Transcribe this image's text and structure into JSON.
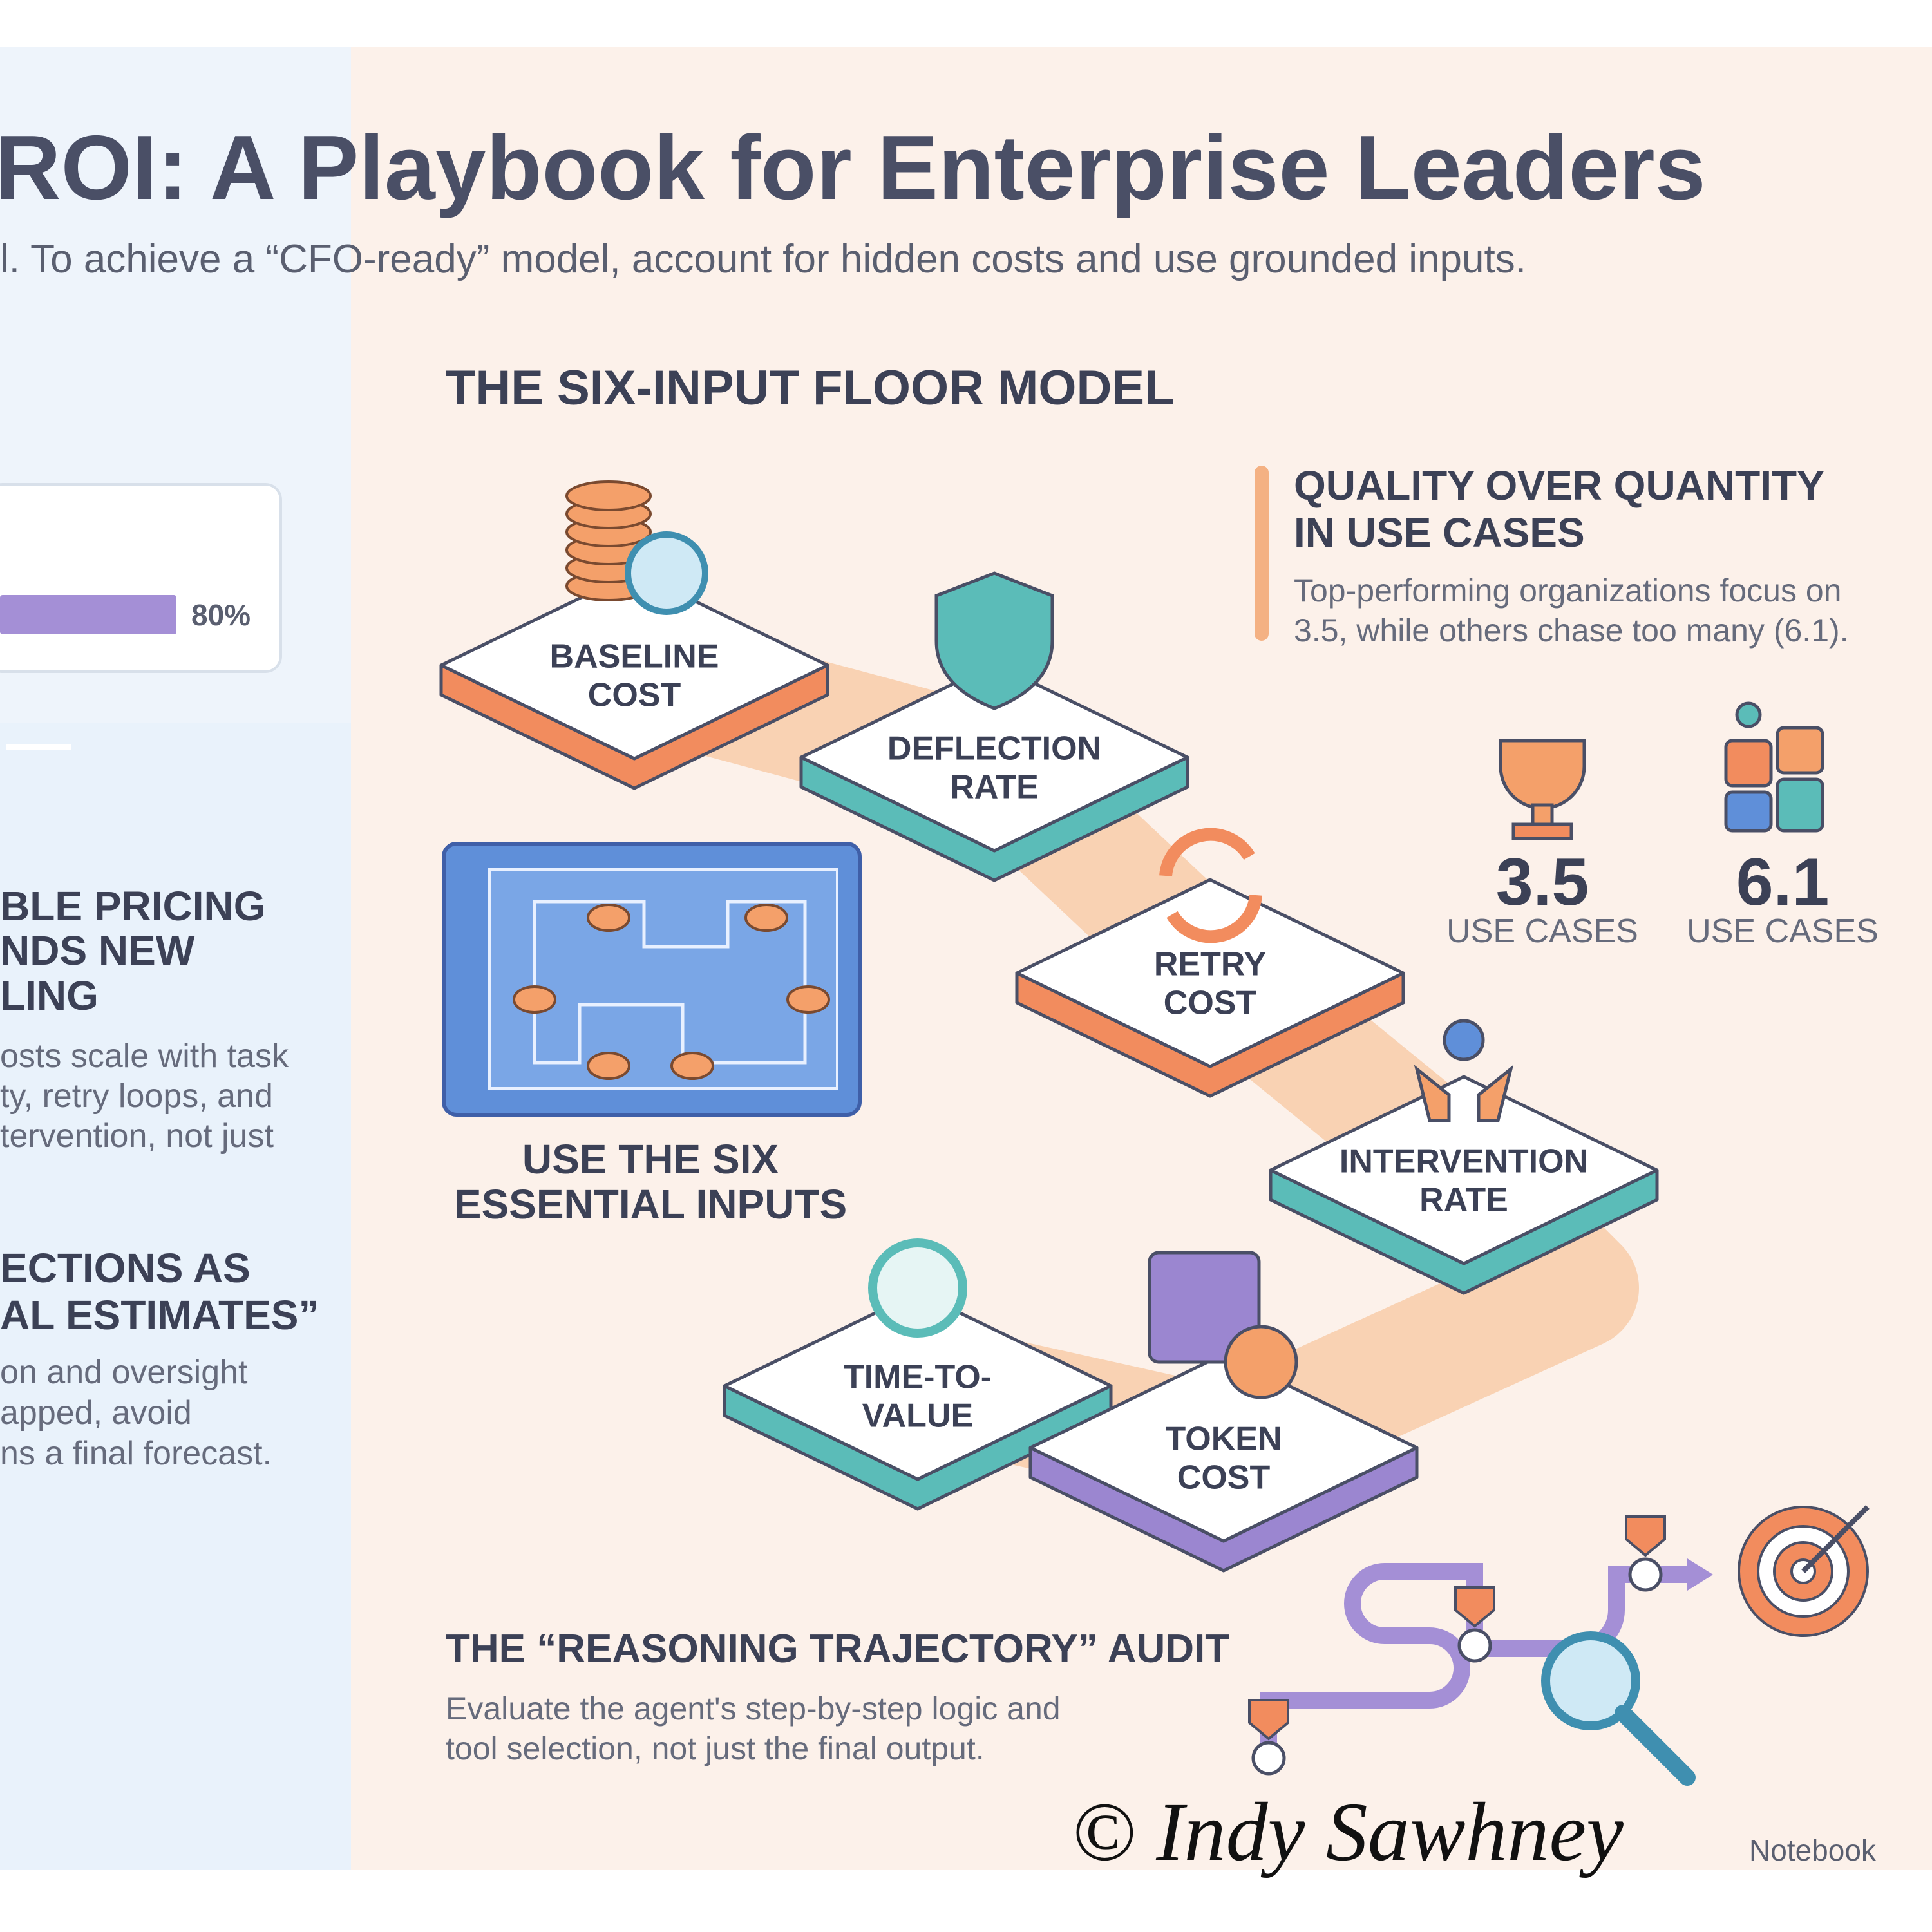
{
  "header": {
    "title": "ROI: A Playbook for Enterprise Leaders",
    "subtitle": "l. To achieve a “CFO-ready” model, account for hidden costs and use grounded inputs."
  },
  "left_panel": {
    "bar_label": "80%",
    "sections": [
      {
        "heading": [
          "BLE PRICING",
          "NDS NEW",
          "LING"
        ],
        "body": [
          "osts scale with task",
          "ty, retry loops, and",
          "tervention, not just"
        ]
      },
      {
        "heading": [
          "ECTIONS AS",
          "AL ESTIMATES”"
        ],
        "body": [
          "on and oversight",
          "apped, avoid",
          "ns a final forecast."
        ]
      }
    ]
  },
  "floor_model": {
    "title": "THE SIX-INPUT FLOOR MODEL",
    "tiles": [
      {
        "label": [
          "BASELINE",
          "COST"
        ]
      },
      {
        "label": [
          "DEFLECTION",
          "RATE"
        ]
      },
      {
        "label": [
          "RETRY",
          "COST"
        ]
      },
      {
        "label": [
          "INTERVENTION",
          "RATE"
        ]
      },
      {
        "label": [
          "TIME-TO-",
          "VALUE"
        ]
      },
      {
        "label": [
          "TOKEN",
          "COST"
        ]
      }
    ],
    "blueprint_label": [
      "USE THE SIX",
      "ESSENTIAL INPUTS"
    ]
  },
  "quality": {
    "heading": [
      "QUALITY OVER QUANTITY",
      "IN USE CASES"
    ],
    "body": [
      "Top-performing organizations focus on",
      "3.5, while others chase too many (6.1)."
    ],
    "stats": [
      {
        "value": "3.5",
        "label": "USE CASES"
      },
      {
        "value": "6.1",
        "label": "USE CASES"
      }
    ]
  },
  "audit": {
    "title": "THE “REASONING TRAJECTORY” AUDIT",
    "body": [
      "Evaluate the agent's step-by-step logic and",
      "tool selection, not just the final output."
    ]
  },
  "footer": {
    "signature": "© Indy Sawhney",
    "brand": "Notebook"
  }
}
